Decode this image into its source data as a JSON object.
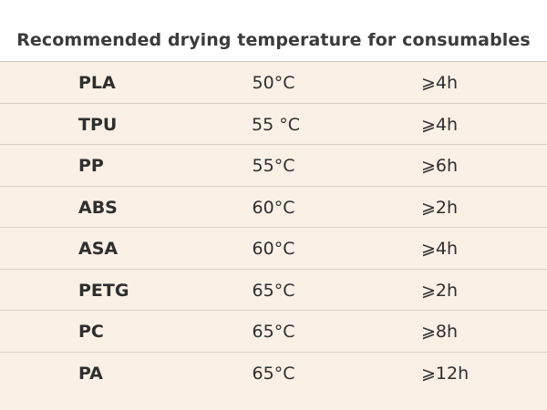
{
  "title": "Recommended drying temperature for consumables",
  "rows": [
    {
      "material": "PLA",
      "temperature": "50°C",
      "time": "⩾4h"
    },
    {
      "material": "TPU",
      "temperature": "55 °C",
      "time": "⩾4h"
    },
    {
      "material": "PP",
      "temperature": "55°C",
      "time": "⩾6h"
    },
    {
      "material": "ABS",
      "temperature": "60°C",
      "time": "⩾2h"
    },
    {
      "material": "ASA",
      "temperature": "60°C",
      "time": "⩾4h"
    },
    {
      "material": "PETG",
      "temperature": "65°C",
      "time": "⩾2h"
    },
    {
      "material": "PC",
      "temperature": "65°C",
      "time": "⩾8h"
    },
    {
      "material": "PA",
      "temperature": "65°C",
      "time": "⩾12h"
    }
  ],
  "colors": {
    "table_background": "#faf0e6",
    "divider": "#d8d0c8",
    "text": "#2e2e2e"
  }
}
